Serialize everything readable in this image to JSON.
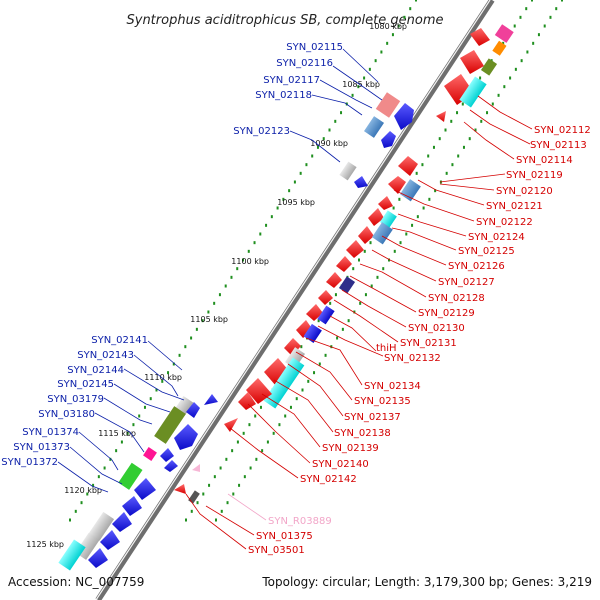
{
  "title": "Syntrophus aciditrophicus SB, complete genome",
  "accession": "Accession: NC_007759",
  "topology": "Topology: circular; Length: 3,179,300 bp; Genes: 3,219",
  "ticks": [
    {
      "label": "1080 kbp",
      "faint": true
    },
    {
      "label": "1085 kbp"
    },
    {
      "label": "1090 kbp"
    },
    {
      "label": "1095 kbp"
    },
    {
      "label": "1100 kbp"
    },
    {
      "label": "1105 kbp"
    },
    {
      "label": "1110 kbp"
    },
    {
      "label": "1115 kbp"
    },
    {
      "label": "1120 kbp"
    },
    {
      "label": "1125 kbp"
    }
  ],
  "left_labels": [
    "SYN_02115",
    "SYN_02116",
    "SYN_02117",
    "SYN_02118",
    "SYN_02123",
    "SYN_02141",
    "SYN_02143",
    "SYN_02144",
    "SYN_02145",
    "SYN_03179",
    "SYN_03180",
    "SYN_01374",
    "SYN_01373",
    "SYN_01372"
  ],
  "right_labels": [
    "SYN_02112",
    "SYN_02113",
    "SYN_02114",
    "SYN_02119",
    "SYN_02120",
    "SYN_02121",
    "SYN_02122",
    "SYN_02124",
    "SYN_02125",
    "SYN_02126",
    "SYN_02127",
    "SYN_02128",
    "SYN_02129",
    "SYN_02130",
    "SYN_02131",
    "thiH",
    "SYN_02132",
    "SYN_02134",
    "SYN_02135",
    "SYN_02137",
    "SYN_02138",
    "SYN_02139",
    "SYN_02140",
    "SYN_02142"
  ],
  "rna_label": "SYN_R03889",
  "bottom_labels": [
    "SYN_01375",
    "SYN_03501"
  ],
  "colors": {
    "backbone": "#6e6e6e",
    "reverse_strand": "#e00000",
    "forward_strand": "#1010e0",
    "left_label": "#0a1ea8",
    "right_label": "#d40000",
    "rna": "#f2a6c8",
    "gc_dots": "#1f8f1f"
  }
}
